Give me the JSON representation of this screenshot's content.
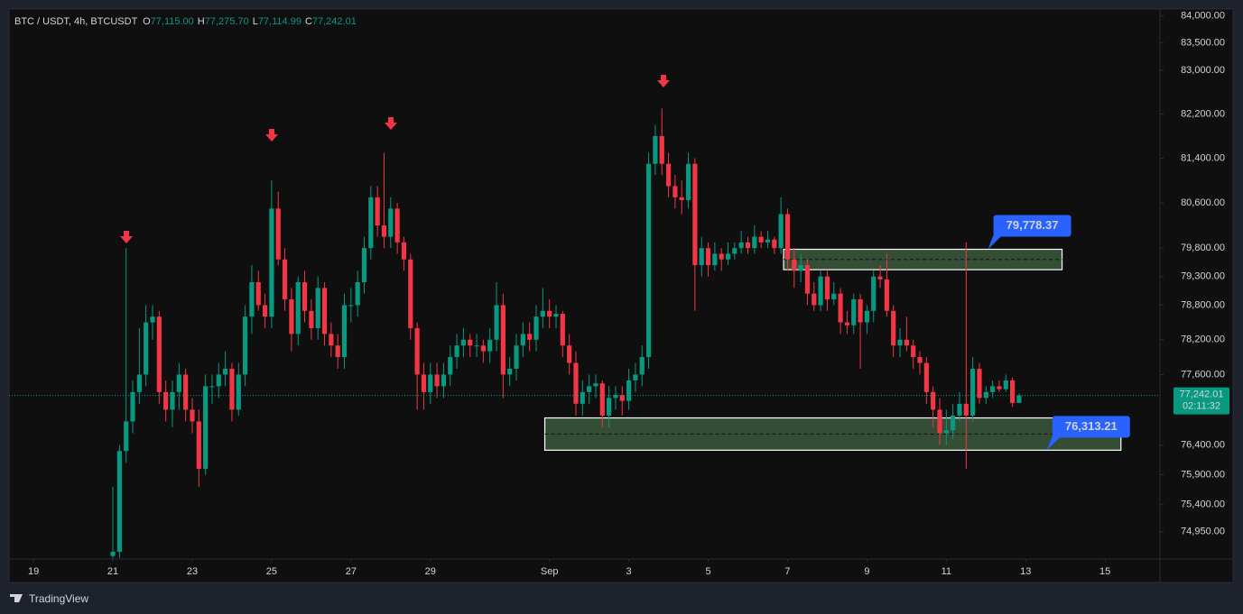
{
  "header": {
    "symbol": "BTC / USDT, 4h, BTCUSDT",
    "ohlc": [
      {
        "key": "O",
        "value": "77,115.00"
      },
      {
        "key": "H",
        "value": "77,275.70"
      },
      {
        "key": "L",
        "value": "77,114.99"
      },
      {
        "key": "C",
        "value": "77,242.01"
      }
    ]
  },
  "chart_data": {
    "type": "candlestick",
    "log_scale": true,
    "up_color": "#089981",
    "down_color": "#f23645",
    "ylim": [
      74500,
      84130
    ],
    "yticks": [
      {
        "value": 74950,
        "label": "74,950.00"
      },
      {
        "value": 75400,
        "label": "75,400.00"
      },
      {
        "value": 75900,
        "label": "75,900.00"
      },
      {
        "value": 76400,
        "label": "76,400.00"
      },
      {
        "value": 77600,
        "label": "77,600.00"
      },
      {
        "value": 78200,
        "label": "78,200.00"
      },
      {
        "value": 78800,
        "label": "78,800.00"
      },
      {
        "value": 79300,
        "label": "79,300.00"
      },
      {
        "value": 79800,
        "label": "79,800.00"
      },
      {
        "value": 80600,
        "label": "80,600.00"
      },
      {
        "value": 81400,
        "label": "81,400.00"
      },
      {
        "value": 82200,
        "label": "82,200.00"
      },
      {
        "value": 83000,
        "label": "83,000.00"
      },
      {
        "value": 83500,
        "label": "83,500.00"
      },
      {
        "value": 84000,
        "label": "84,000.00"
      }
    ],
    "xlim": [
      -15.7,
      158.3
    ],
    "xticks": [
      {
        "value": -12,
        "label": "19"
      },
      {
        "value": 0,
        "label": "21"
      },
      {
        "value": 12,
        "label": "23"
      },
      {
        "value": 24,
        "label": "25"
      },
      {
        "value": 36,
        "label": "27"
      },
      {
        "value": 48,
        "label": "29"
      },
      {
        "value": 66,
        "label": "Sep"
      },
      {
        "value": 78,
        "label": "3"
      },
      {
        "value": 90,
        "label": "5"
      },
      {
        "value": 102,
        "label": "7"
      },
      {
        "value": 114,
        "label": "9"
      },
      {
        "value": 126,
        "label": "11"
      },
      {
        "value": 138,
        "label": "13"
      },
      {
        "value": 150,
        "label": "15"
      }
    ],
    "ohlc": [
      [
        74550,
        75700,
        74510,
        74620
      ],
      [
        74620,
        76400,
        74520,
        76300
      ],
      [
        76300,
        79800,
        76100,
        76800
      ],
      [
        76800,
        77500,
        76600,
        77300
      ],
      [
        77300,
        78400,
        77100,
        77600
      ],
      [
        77600,
        78800,
        77400,
        78500
      ],
      [
        78500,
        78800,
        78200,
        78600
      ],
      [
        78600,
        78700,
        77100,
        77300
      ],
      [
        77300,
        77500,
        76800,
        77000
      ],
      [
        77000,
        77500,
        76700,
        77300
      ],
      [
        77300,
        77800,
        77000,
        77600
      ],
      [
        77600,
        77700,
        76800,
        77000
      ],
      [
        77000,
        77200,
        76600,
        76800
      ],
      [
        76800,
        77000,
        75700,
        76000
      ],
      [
        76000,
        77600,
        75900,
        77400
      ],
      [
        77400,
        77600,
        77100,
        77400
      ],
      [
        77400,
        77800,
        77200,
        77600
      ],
      [
        77600,
        78000,
        77400,
        77700
      ],
      [
        77700,
        77800,
        76800,
        77000
      ],
      [
        77000,
        77800,
        76900,
        77600
      ],
      [
        77600,
        78800,
        77400,
        78600
      ],
      [
        78600,
        79500,
        78300,
        79200
      ],
      [
        79200,
        79400,
        78700,
        78800
      ],
      [
        78800,
        79000,
        78400,
        78600
      ],
      [
        78600,
        81000,
        78400,
        80500
      ],
      [
        80500,
        80800,
        79500,
        79600
      ],
      [
        79600,
        79800,
        78700,
        78900
      ],
      [
        78900,
        79100,
        78000,
        78300
      ],
      [
        78300,
        79300,
        78100,
        79200
      ],
      [
        79200,
        79400,
        78500,
        78700
      ],
      [
        78700,
        78900,
        78200,
        78400
      ],
      [
        78400,
        79300,
        78200,
        79100
      ],
      [
        79100,
        79200,
        78100,
        78300
      ],
      [
        78300,
        78500,
        77900,
        78100
      ],
      [
        78100,
        78300,
        77700,
        77900
      ],
      [
        77900,
        79000,
        77700,
        78800
      ],
      [
        78800,
        79100,
        78500,
        78800
      ],
      [
        78800,
        79400,
        78600,
        79200
      ],
      [
        79200,
        80000,
        79000,
        79800
      ],
      [
        79800,
        80900,
        79600,
        80700
      ],
      [
        80700,
        80900,
        80000,
        80200
      ],
      [
        80200,
        81500,
        79800,
        80000
      ],
      [
        80000,
        80700,
        79800,
        80500
      ],
      [
        80500,
        80600,
        79700,
        79900
      ],
      [
        79900,
        80000,
        79400,
        79600
      ],
      [
        79600,
        79700,
        78200,
        78400
      ],
      [
        78400,
        78500,
        77000,
        77600
      ],
      [
        77600,
        77800,
        77000,
        77300
      ],
      [
        77300,
        77800,
        77100,
        77600
      ],
      [
        77600,
        77800,
        77200,
        77400
      ],
      [
        77400,
        77800,
        77200,
        77600
      ],
      [
        77600,
        78100,
        77400,
        77900
      ],
      [
        77900,
        78300,
        77700,
        78100
      ],
      [
        78100,
        78400,
        77900,
        78200
      ],
      [
        78200,
        78300,
        77900,
        78100
      ],
      [
        78100,
        78300,
        77900,
        78100
      ],
      [
        78100,
        78200,
        77800,
        78000
      ],
      [
        78000,
        78400,
        77800,
        78200
      ],
      [
        78200,
        79200,
        78000,
        78800
      ],
      [
        78800,
        79000,
        77200,
        77600
      ],
      [
        77600,
        77900,
        77400,
        77700
      ],
      [
        77700,
        78300,
        77500,
        78100
      ],
      [
        78100,
        78500,
        77900,
        78300
      ],
      [
        78300,
        78500,
        78000,
        78200
      ],
      [
        78200,
        78800,
        78000,
        78600
      ],
      [
        78600,
        79100,
        78400,
        78700
      ],
      [
        78700,
        78900,
        78400,
        78600
      ],
      [
        78600,
        78800,
        78400,
        78650
      ],
      [
        78650,
        78700,
        77900,
        78100
      ],
      [
        78100,
        78300,
        77600,
        77800
      ],
      [
        77800,
        78000,
        76900,
        77100
      ],
      [
        77100,
        77500,
        76900,
        77300
      ],
      [
        77300,
        77600,
        77100,
        77400
      ],
      [
        77400,
        77600,
        77200,
        77450
      ],
      [
        77450,
        77500,
        76700,
        76900
      ],
      [
        76900,
        77400,
        76700,
        77200
      ],
      [
        77200,
        77400,
        77000,
        77250
      ],
      [
        77250,
        77400,
        76900,
        77150
      ],
      [
        77150,
        77700,
        77000,
        77500
      ],
      [
        77500,
        77800,
        77300,
        77600
      ],
      [
        77600,
        78100,
        77400,
        77900
      ],
      [
        77900,
        81500,
        77700,
        81300
      ],
      [
        81300,
        82000,
        81100,
        81800
      ],
      [
        81800,
        82300,
        81100,
        81300
      ],
      [
        81300,
        81500,
        80700,
        80900
      ],
      [
        80900,
        81100,
        80500,
        80700
      ],
      [
        80700,
        81000,
        80400,
        80650
      ],
      [
        80650,
        81500,
        80500,
        81300
      ],
      [
        81300,
        81400,
        78700,
        79500
      ],
      [
        79500,
        80000,
        79300,
        79800
      ],
      [
        79800,
        79900,
        79300,
        79500
      ],
      [
        79500,
        79900,
        79400,
        79700
      ],
      [
        79700,
        79800,
        79400,
        79600
      ],
      [
        79600,
        79900,
        79500,
        79700
      ],
      [
        79700,
        79900,
        79600,
        79800
      ],
      [
        79800,
        80100,
        79700,
        79900
      ],
      [
        79900,
        80000,
        79700,
        79800
      ],
      [
        79800,
        80200,
        79700,
        80000
      ],
      [
        80000,
        80100,
        79800,
        79900
      ],
      [
        79900,
        80100,
        79800,
        79950
      ],
      [
        79950,
        80000,
        79700,
        79800
      ],
      [
        79800,
        80700,
        79700,
        80400
      ],
      [
        80400,
        80500,
        79400,
        79600
      ],
      [
        79600,
        79800,
        79100,
        79400
      ],
      [
        79400,
        79700,
        79200,
        79500
      ],
      [
        79500,
        79600,
        78800,
        79000
      ],
      [
        79000,
        79200,
        78700,
        78800
      ],
      [
        78800,
        79400,
        78700,
        79300
      ],
      [
        79300,
        79400,
        78700,
        78900
      ],
      [
        78900,
        79200,
        78800,
        79000
      ],
      [
        79000,
        79100,
        78300,
        78500
      ],
      [
        78500,
        78700,
        78300,
        78450
      ],
      [
        78450,
        79000,
        78300,
        78900
      ],
      [
        78900,
        79000,
        77700,
        78500
      ],
      [
        78500,
        78800,
        78300,
        78700
      ],
      [
        78700,
        79400,
        78500,
        79300
      ],
      [
        79300,
        79500,
        79100,
        79250
      ],
      [
        79250,
        79700,
        78600,
        78700
      ],
      [
        78700,
        78800,
        77900,
        78100
      ],
      [
        78100,
        78400,
        77900,
        78200
      ],
      [
        78200,
        78600,
        78000,
        78100
      ],
      [
        78100,
        78200,
        77700,
        77900
      ],
      [
        77900,
        78000,
        77600,
        77800
      ],
      [
        77800,
        77900,
        77100,
        77300
      ],
      [
        77300,
        77400,
        76700,
        77000
      ],
      [
        77000,
        77200,
        76400,
        76600
      ],
      [
        76600,
        77000,
        76400,
        76650
      ],
      [
        76650,
        77100,
        76500,
        76900
      ],
      [
        76900,
        77300,
        76800,
        77100
      ],
      [
        77100,
        79900,
        76000,
        76900
      ],
      [
        76900,
        77900,
        76800,
        77700
      ],
      [
        77700,
        77800,
        77100,
        77200
      ],
      [
        77200,
        77400,
        77100,
        77300
      ],
      [
        77300,
        77500,
        77200,
        77400
      ],
      [
        77400,
        77500,
        77300,
        77350
      ],
      [
        77350,
        77600,
        77300,
        77500
      ],
      [
        77500,
        77550,
        77050,
        77115
      ],
      [
        77115,
        77275.7,
        77114.99,
        77242.01
      ]
    ],
    "zones": [
      {
        "x0": 101.4,
        "x1": 143.5,
        "top": 79778.37,
        "bottom": 79420,
        "label": "79,778.37"
      },
      {
        "x0": 65.3,
        "x1": 152.4,
        "top": 76860,
        "bottom": 76313.21,
        "label": "76,313.21"
      }
    ],
    "last_price_label": "77,242.01",
    "countdown": "02:11:32"
  },
  "footer": {
    "brand": "TradingView"
  }
}
